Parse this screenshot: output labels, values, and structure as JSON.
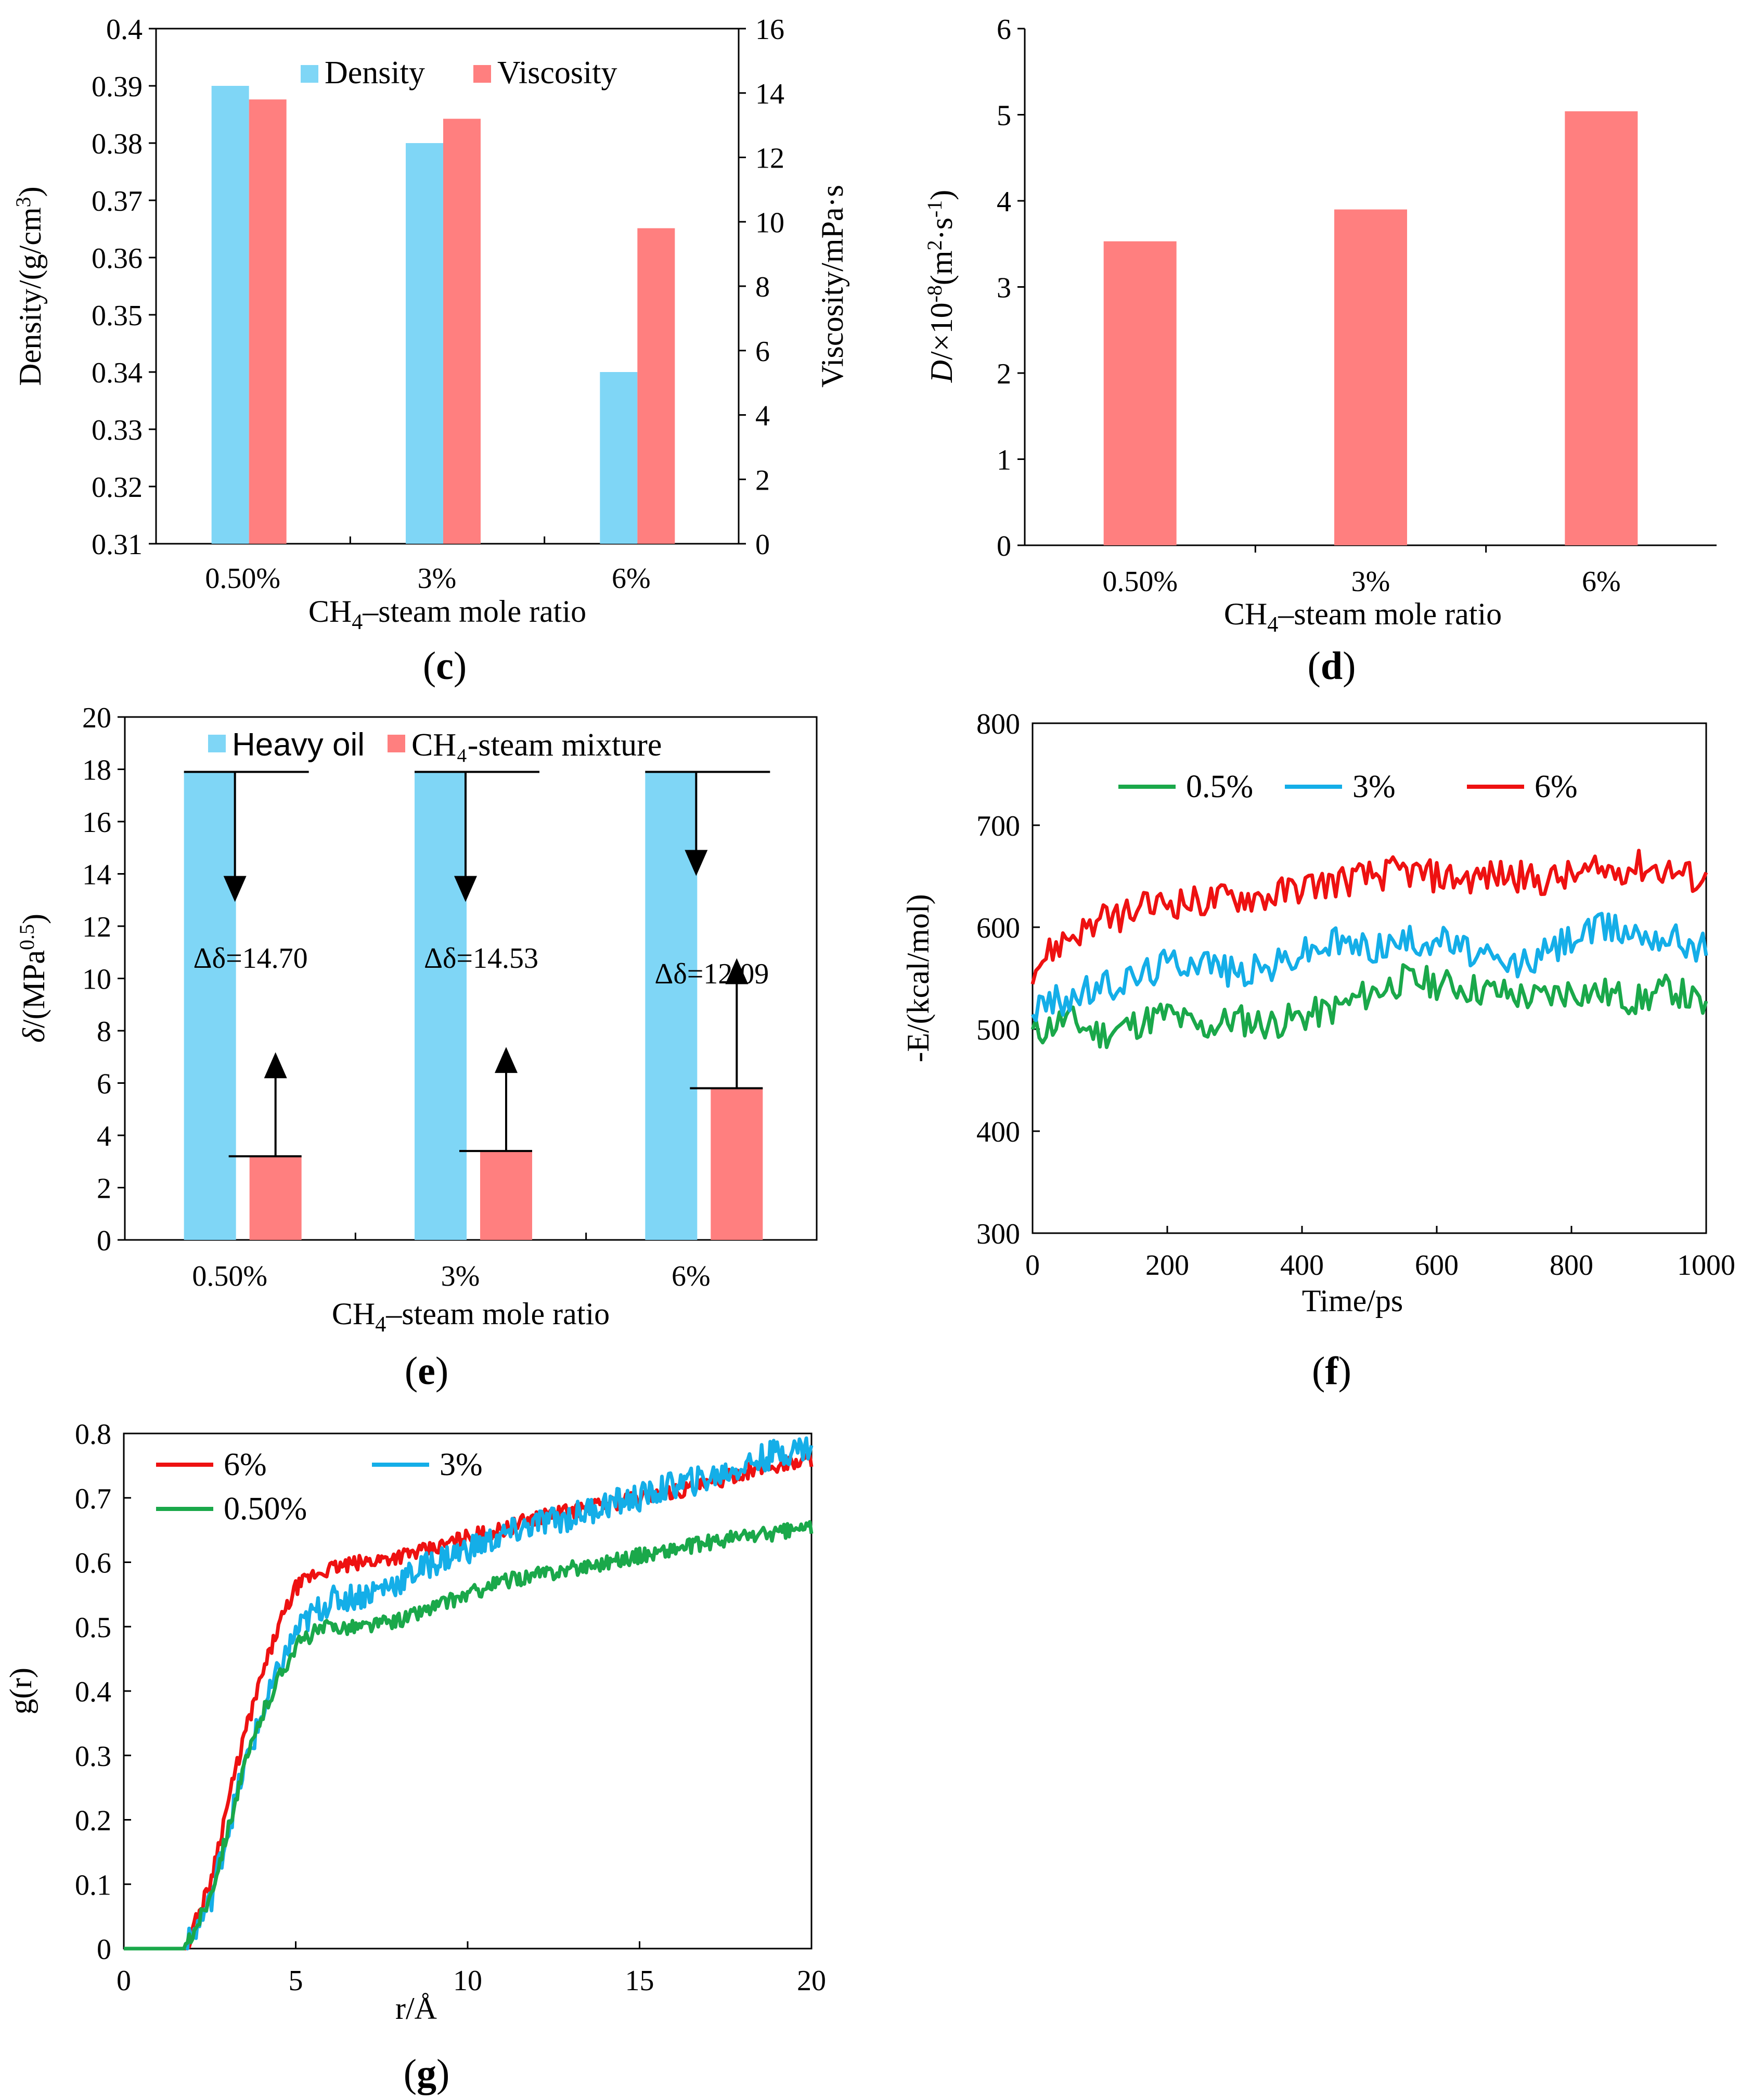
{
  "colors": {
    "blue": "#7fd6f6",
    "red": "#ff7f7f",
    "green": "#1aa84a",
    "lineBlue": "#14aee8",
    "lineRed": "#ee1111",
    "axis": "#000000"
  },
  "chart_data": [
    {
      "id": "c",
      "type": "bar",
      "panel": "c",
      "categories": [
        "0.50%",
        "3%",
        "6%"
      ],
      "xlabel_pre": "CH",
      "xlabel_sub": "4",
      "xlabel_post": "–steam mole ratio",
      "ylabel": "Density/(g/cm3)",
      "ylabel_pre": "Density/(g/cm",
      "ylabel_sup": "3",
      "ylabel_post": ")",
      "y2label": "Viscosity/mPa·s",
      "ylim": [
        0.31,
        0.4
      ],
      "yticks": [
        "0.31",
        "0.32",
        "0.33",
        "0.34",
        "0.35",
        "0.36",
        "0.37",
        "0.38",
        "0.39",
        "0.4"
      ],
      "y2lim": [
        0,
        16
      ],
      "y2ticks": [
        "0",
        "2",
        "4",
        "6",
        "8",
        "10",
        "12",
        "14",
        "16"
      ],
      "legend": [
        "Density",
        "Viscosity"
      ],
      "series": [
        {
          "name": "Density",
          "axis": "left",
          "values": [
            0.39,
            0.38,
            0.34
          ]
        },
        {
          "name": "Viscosity",
          "axis": "right",
          "values": [
            13.8,
            13.2,
            9.8
          ]
        }
      ]
    },
    {
      "id": "d",
      "type": "bar",
      "panel": "d",
      "categories": [
        "0.50%",
        "3%",
        "6%"
      ],
      "xlabel_pre": "CH",
      "xlabel_sub": "4",
      "xlabel_post": "–steam mole ratio",
      "ylabel": "D/×10-8(m2·s-1)",
      "ylim": [
        0,
        6
      ],
      "yticks": [
        "0",
        "1",
        "2",
        "3",
        "4",
        "5",
        "6"
      ],
      "series": [
        {
          "name": "D",
          "values": [
            3.53,
            3.9,
            5.04
          ]
        }
      ]
    },
    {
      "id": "e",
      "type": "bar",
      "panel": "e",
      "categories": [
        "0.50%",
        "3%",
        "6%"
      ],
      "xlabel_pre": "CH",
      "xlabel_sub": "4",
      "xlabel_post": "–steam mole ratio",
      "ylabel": "δ/(MPa0.5)",
      "ylim": [
        0,
        20
      ],
      "yticks": [
        "0",
        "2",
        "4",
        "6",
        "8",
        "10",
        "12",
        "14",
        "16",
        "18",
        "20"
      ],
      "legend": [
        "Heavy oil",
        "CH₄-steam mixture"
      ],
      "series": [
        {
          "name": "Heavy oil",
          "values": [
            17.9,
            17.9,
            17.9
          ]
        },
        {
          "name": "CH₄-steam mixture",
          "values": [
            3.2,
            3.4,
            5.8
          ]
        }
      ],
      "annotations": [
        "Δδ=14.70",
        "Δδ=14.53",
        "Δδ=12.09"
      ]
    },
    {
      "id": "f",
      "type": "line",
      "panel": "f",
      "xlabel": "Time/ps",
      "ylabel": "-E/(kcal/mol)",
      "xlim": [
        0,
        1000
      ],
      "ylim": [
        300,
        800
      ],
      "xticks": [
        "0",
        "200",
        "400",
        "600",
        "800",
        "1000"
      ],
      "yticks": [
        "300",
        "400",
        "500",
        "600",
        "700",
        "800"
      ],
      "legend": [
        "0.5%",
        "3%",
        "6%"
      ],
      "series": [
        {
          "name": "0.5%",
          "x": [
            0,
            50,
            100,
            150,
            200,
            250,
            300,
            350,
            400,
            450,
            500,
            550,
            600,
            650,
            700,
            750,
            800,
            850,
            900,
            950,
            1000
          ],
          "y": [
            495,
            510,
            495,
            505,
            515,
            500,
            510,
            505,
            512,
            520,
            535,
            548,
            545,
            540,
            535,
            530,
            538,
            535,
            528,
            540,
            520
          ]
        },
        {
          "name": "3%",
          "x": [
            0,
            50,
            100,
            150,
            200,
            250,
            300,
            350,
            400,
            450,
            500,
            550,
            600,
            650,
            700,
            750,
            800,
            850,
            900,
            950,
            1000
          ],
          "y": [
            520,
            530,
            540,
            550,
            565,
            570,
            555,
            560,
            575,
            585,
            580,
            585,
            590,
            575,
            560,
            570,
            590,
            600,
            595,
            590,
            580
          ]
        },
        {
          "name": "6%",
          "x": [
            0,
            50,
            100,
            150,
            200,
            250,
            300,
            350,
            400,
            450,
            500,
            550,
            600,
            650,
            700,
            750,
            800,
            850,
            900,
            950,
            1000
          ],
          "y": [
            560,
            590,
            605,
            615,
            625,
            625,
            630,
            630,
            640,
            645,
            650,
            655,
            650,
            648,
            652,
            645,
            650,
            655,
            660,
            655,
            645
          ]
        }
      ]
    },
    {
      "id": "g",
      "type": "line",
      "panel": "g",
      "xlabel": "r/Å",
      "ylabel": "g(r)",
      "xlim": [
        0,
        20
      ],
      "ylim": [
        0,
        0.8
      ],
      "xticks": [
        "0",
        "5",
        "10",
        "15",
        "20"
      ],
      "yticks": [
        "0",
        "0.1",
        "0.2",
        "0.3",
        "0.4",
        "0.5",
        "0.6",
        "0.7",
        "0.8"
      ],
      "legend": [
        "6%",
        "3%",
        "0.50%"
      ],
      "series": [
        {
          "name": "6%",
          "x": [
            0,
            1.8,
            2.5,
            3,
            3.5,
            4,
            4.5,
            5,
            5.5,
            6,
            7,
            8,
            9,
            10,
            11,
            12,
            13,
            14,
            15,
            16,
            17,
            18,
            19,
            20
          ],
          "y": [
            0,
            0,
            0.1,
            0.22,
            0.33,
            0.42,
            0.5,
            0.56,
            0.58,
            0.59,
            0.6,
            0.61,
            0.62,
            0.64,
            0.65,
            0.67,
            0.68,
            0.69,
            0.7,
            0.71,
            0.72,
            0.74,
            0.75,
            0.76
          ]
        },
        {
          "name": "3%",
          "x": [
            0,
            1.8,
            2.5,
            3,
            3.5,
            4,
            4.5,
            5,
            5.5,
            6,
            7,
            8,
            9,
            10,
            11,
            12,
            13,
            14,
            15,
            16,
            17,
            18,
            19,
            20
          ],
          "y": [
            0,
            0,
            0.07,
            0.18,
            0.28,
            0.36,
            0.43,
            0.49,
            0.52,
            0.54,
            0.55,
            0.57,
            0.6,
            0.62,
            0.64,
            0.66,
            0.67,
            0.69,
            0.7,
            0.72,
            0.73,
            0.75,
            0.77,
            0.78
          ]
        },
        {
          "name": "0.50%",
          "x": [
            0,
            1.8,
            2.5,
            3,
            3.5,
            4,
            4.5,
            5,
            5.5,
            6,
            7,
            8,
            9,
            10,
            11,
            12,
            13,
            14,
            15,
            16,
            17,
            18,
            19,
            20
          ],
          "y": [
            0,
            0,
            0.08,
            0.18,
            0.28,
            0.36,
            0.42,
            0.47,
            0.49,
            0.5,
            0.5,
            0.51,
            0.53,
            0.55,
            0.57,
            0.58,
            0.59,
            0.6,
            0.61,
            0.62,
            0.63,
            0.64,
            0.645,
            0.655
          ]
        }
      ]
    }
  ],
  "panels": {
    "c": "c",
    "d": "d",
    "e": "e",
    "f": "f",
    "g": "g"
  }
}
